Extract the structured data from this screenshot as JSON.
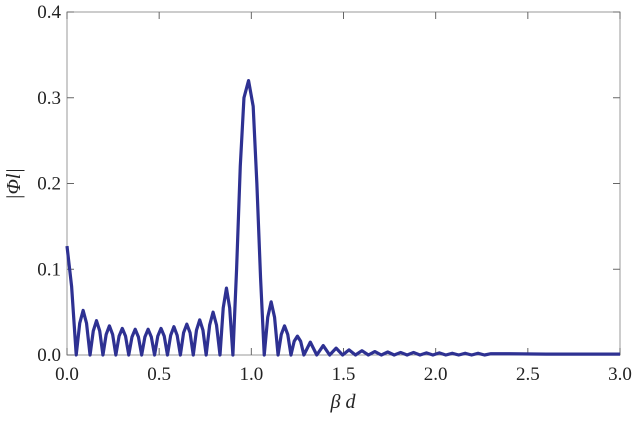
{
  "chart_data": {
    "type": "line",
    "xlabel": "β d",
    "ylabel": "|Φl|",
    "xlim": [
      0,
      3.0
    ],
    "ylim": [
      0,
      0.4
    ],
    "xticks": [
      {
        "value": 0,
        "label": "0.0"
      },
      {
        "value": 0.5,
        "label": "0.5"
      },
      {
        "value": 1,
        "label": "1.0"
      },
      {
        "value": 1.5,
        "label": "1.5"
      },
      {
        "value": 2,
        "label": "2.0"
      },
      {
        "value": 2.5,
        "label": "2.5"
      },
      {
        "value": 3,
        "label": "3.0"
      }
    ],
    "yticks": [
      {
        "value": 0,
        "label": "0.0"
      },
      0.1,
      0.2,
      0.3,
      0.4
    ],
    "series": [
      {
        "color": "#2e3192",
        "x": [
          0,
          0.025,
          0.05,
          0.069,
          0.0875,
          0.106,
          0.125,
          0.1425,
          0.16,
          0.1775,
          0.195,
          0.2125,
          0.23,
          0.2475,
          0.265,
          0.2825,
          0.3,
          0.3175,
          0.335,
          0.3525,
          0.37,
          0.3875,
          0.405,
          0.4225,
          0.44,
          0.4575,
          0.475,
          0.4925,
          0.51,
          0.5275,
          0.545,
          0.5625,
          0.58,
          0.5975,
          0.615,
          0.6325,
          0.65,
          0.6675,
          0.685,
          0.7025,
          0.72,
          0.7375,
          0.755,
          0.774,
          0.7925,
          0.811,
          0.83,
          0.8475,
          0.865,
          0.8825,
          0.9,
          0.92,
          0.94,
          0.96,
          0.985,
          1.01,
          1.03,
          1.05,
          1.07,
          1.089,
          1.1075,
          1.126,
          1.145,
          1.1625,
          1.18,
          1.1975,
          1.215,
          1.2325,
          1.25,
          1.2675,
          1.285,
          1.32,
          1.355,
          1.39,
          1.425,
          1.46,
          1.495,
          1.53,
          1.565,
          1.6,
          1.635,
          1.67,
          1.705,
          1.74,
          1.775,
          1.81,
          1.845,
          1.88,
          1.915,
          1.95,
          1.985,
          2.02,
          2.055,
          2.09,
          2.125,
          2.16,
          2.195,
          2.23,
          2.265,
          2.3,
          2.4,
          2.6,
          2.8,
          3.0
        ],
        "values": [
          0.127,
          0.08,
          0,
          0.037,
          0.052,
          0.037,
          0,
          0.028,
          0.04,
          0.028,
          0,
          0.024,
          0.034,
          0.024,
          0,
          0.022,
          0.031,
          0.022,
          0,
          0.021,
          0.03,
          0.021,
          0,
          0.021,
          0.03,
          0.021,
          0,
          0.022,
          0.031,
          0.022,
          0,
          0.023,
          0.033,
          0.023,
          0,
          0.026,
          0.036,
          0.026,
          0,
          0.029,
          0.041,
          0.029,
          0,
          0.035,
          0.05,
          0.035,
          0,
          0.055,
          0.078,
          0.055,
          0,
          0.1,
          0.22,
          0.3,
          0.32,
          0.29,
          0.2,
          0.09,
          0,
          0.044,
          0.062,
          0.044,
          0,
          0.024,
          0.034,
          0.024,
          0,
          0.016,
          0.022,
          0.016,
          0,
          0.015,
          0,
          0.011,
          0,
          0.008,
          0,
          0.006,
          0,
          0.005,
          0,
          0.004,
          0,
          0.0035,
          0,
          0.003,
          0,
          0.003,
          0,
          0.0025,
          0,
          0.0025,
          0,
          0.002,
          0,
          0.002,
          0,
          0.002,
          0,
          0.0015,
          0.0015,
          0.001,
          0.001,
          0.001
        ]
      }
    ]
  }
}
